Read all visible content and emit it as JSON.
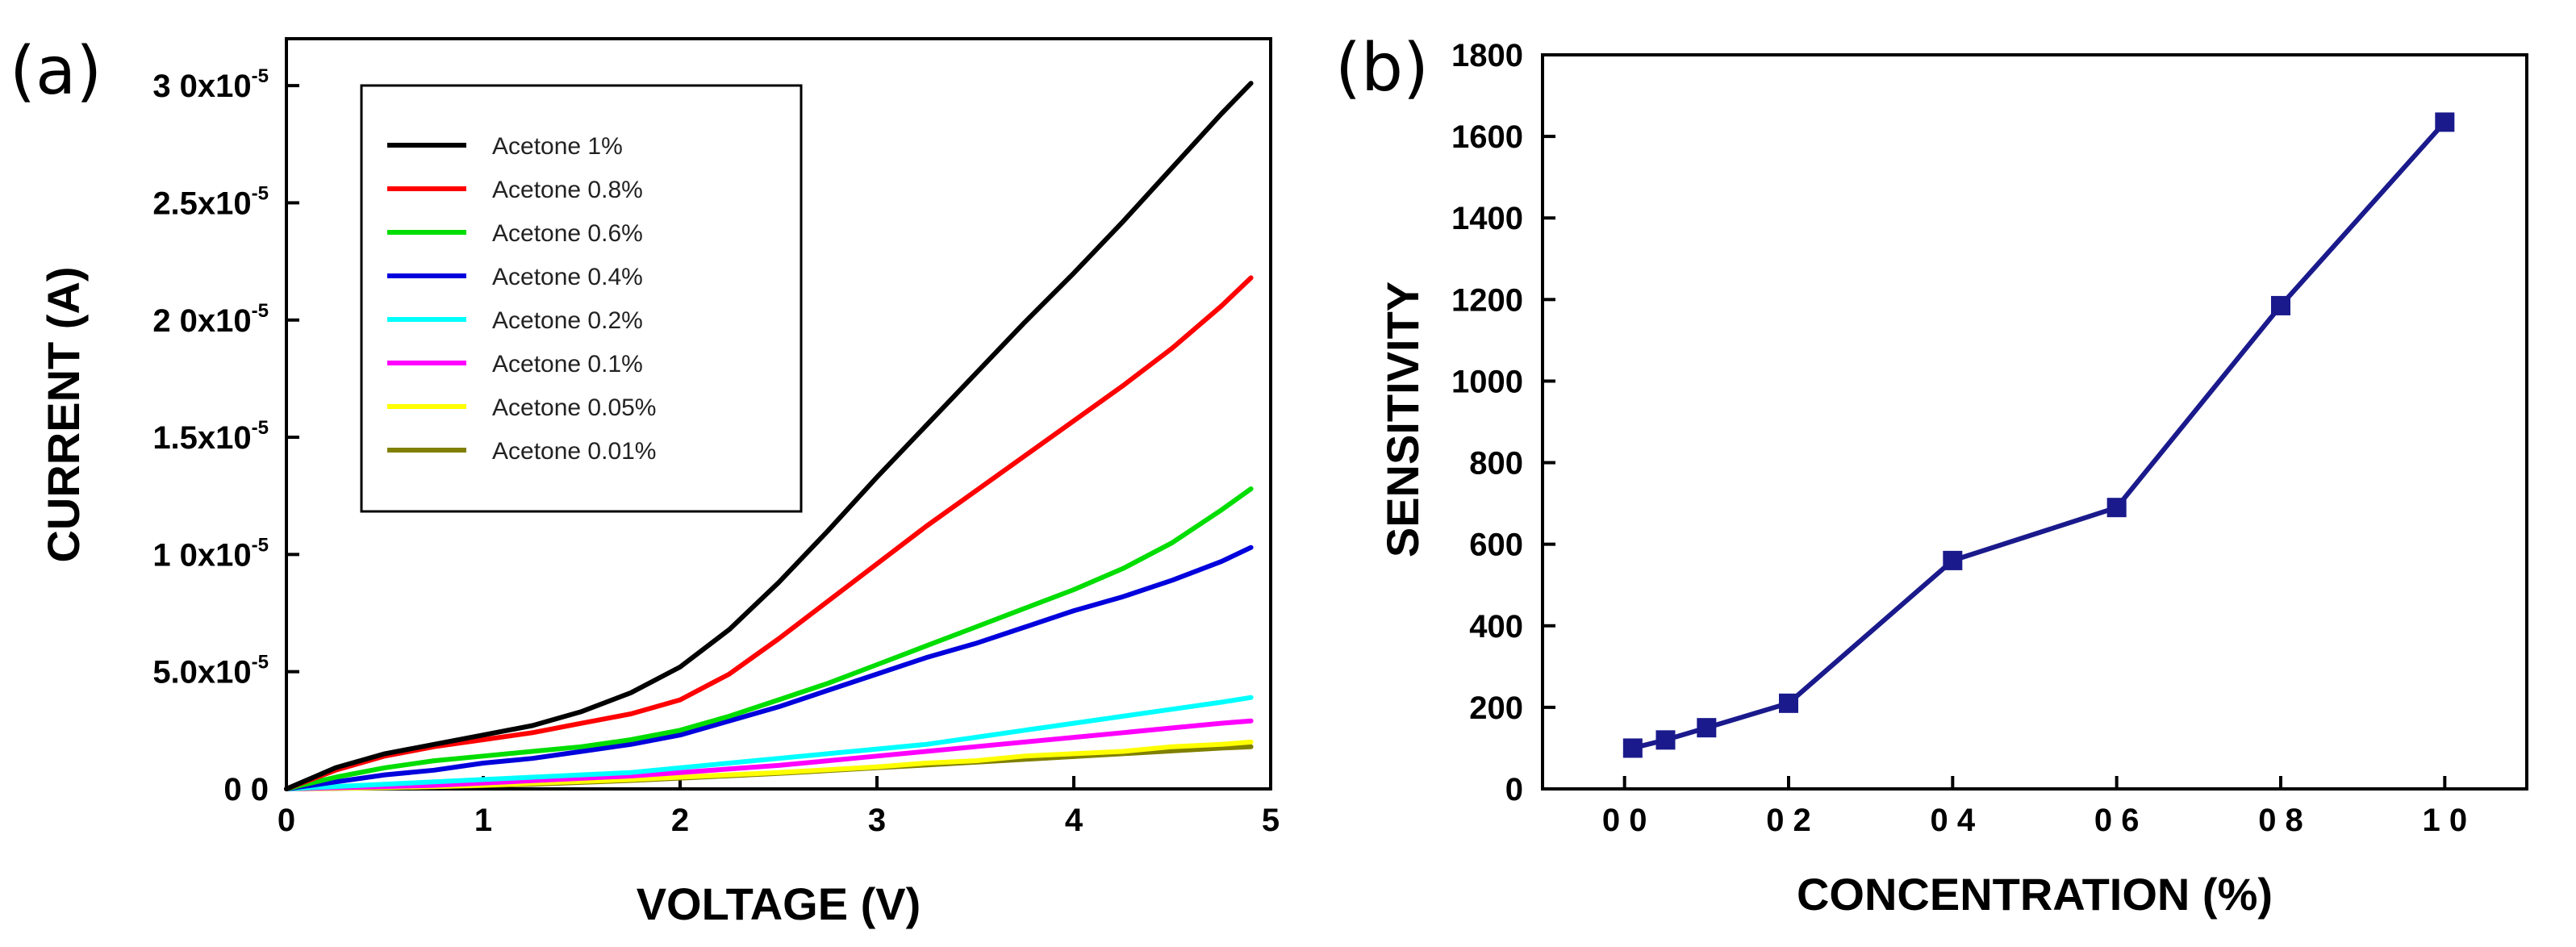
{
  "colors": {
    "acetone_1": "#000000",
    "acetone_0_8": "#ff0000",
    "acetone_0_6": "#00dd00",
    "acetone_0_4": "#0000dd",
    "acetone_0_2": "#00ffff",
    "acetone_0_1": "#ff00ff",
    "acetone_0_05": "#ffff00",
    "acetone_0_01": "#808000",
    "sensitivity_line": "#1a1a8c"
  },
  "chart_data": [
    {
      "panel_label": "(a)",
      "type": "line",
      "title": "",
      "xlabel": "VOLTAGE (V)",
      "ylabel": "CURRENT (A)",
      "xlim": [
        0,
        5
      ],
      "ylim": [
        0,
        3.2e-05
      ],
      "grid": false,
      "legend_position": "top-left",
      "x_ticks": [
        0,
        1,
        2,
        3,
        4,
        5
      ],
      "x_tick_labels": [
        "0",
        "1",
        "2",
        "3",
        "4",
        "5"
      ],
      "y_ticks": [
        0,
        5e-06,
        1e-05,
        1.5e-05,
        2e-05,
        2.5e-05,
        3e-05
      ],
      "y_tick_labels": [
        "0 0",
        "5.0x10",
        "1 0x10",
        "1.5x10",
        "2 0x10",
        "2.5x10",
        "3 0x10"
      ],
      "y_tick_exponent": "-5",
      "x": [
        0,
        0.25,
        0.5,
        0.75,
        1,
        1.25,
        1.5,
        1.75,
        2,
        2.25,
        2.5,
        2.75,
        3,
        3.25,
        3.5,
        3.75,
        4,
        4.25,
        4.5,
        4.75,
        4.9
      ],
      "series": [
        {
          "name": "Acetone 1%",
          "color_key": "acetone_1",
          "values": [
            0,
            9e-07,
            1.5e-06,
            1.9e-06,
            2.3e-06,
            2.7e-06,
            3.3e-06,
            4.1e-06,
            5.2e-06,
            6.8e-06,
            8.8e-06,
            1.1e-05,
            1.33e-05,
            1.55e-05,
            1.77e-05,
            1.99e-05,
            2.2e-05,
            2.42e-05,
            2.65e-05,
            2.88e-05,
            3.01e-05
          ]
        },
        {
          "name": "Acetone 0.8%",
          "color_key": "acetone_0_8",
          "values": [
            0,
            8e-07,
            1.4e-06,
            1.8e-06,
            2.1e-06,
            2.4e-06,
            2.8e-06,
            3.2e-06,
            3.8e-06,
            4.9e-06,
            6.4e-06,
            8e-06,
            9.6e-06,
            1.12e-05,
            1.27e-05,
            1.42e-05,
            1.57e-05,
            1.72e-05,
            1.88e-05,
            2.06e-05,
            2.18e-05
          ]
        },
        {
          "name": "Acetone 0.6%",
          "color_key": "acetone_0_6",
          "values": [
            0,
            5e-07,
            9e-07,
            1.2e-06,
            1.4e-06,
            1.6e-06,
            1.8e-06,
            2.1e-06,
            2.5e-06,
            3.1e-06,
            3.8e-06,
            4.5e-06,
            5.3e-06,
            6.1e-06,
            6.9e-06,
            7.7e-06,
            8.5e-06,
            9.4e-06,
            1.05e-05,
            1.19e-05,
            1.28e-05
          ]
        },
        {
          "name": "Acetone 0.4%",
          "color_key": "acetone_0_4",
          "values": [
            0,
            3e-07,
            6e-07,
            8e-07,
            1.1e-06,
            1.3e-06,
            1.6e-06,
            1.9e-06,
            2.3e-06,
            2.9e-06,
            3.5e-06,
            4.2e-06,
            4.9e-06,
            5.6e-06,
            6.2e-06,
            6.9e-06,
            7.6e-06,
            8.2e-06,
            8.9e-06,
            9.7e-06,
            1.03e-05
          ]
        },
        {
          "name": "Acetone 0.2%",
          "color_key": "acetone_0_2",
          "values": [
            0,
            1e-07,
            2e-07,
            3e-07,
            4e-07,
            5e-07,
            6e-07,
            7e-07,
            9e-07,
            1.1e-06,
            1.3e-06,
            1.5e-06,
            1.7e-06,
            1.9e-06,
            2.2e-06,
            2.5e-06,
            2.8e-06,
            3.1e-06,
            3.4e-06,
            3.7e-06,
            3.9e-06
          ]
        },
        {
          "name": "Acetone 0.1%",
          "color_key": "acetone_0_1",
          "values": [
            0,
            5e-08,
            1e-07,
            1.5e-07,
            2.5e-07,
            3.5e-07,
            4.5e-07,
            5.5e-07,
            7e-07,
            8.5e-07,
            1e-06,
            1.2e-06,
            1.4e-06,
            1.6e-06,
            1.8e-06,
            2e-06,
            2.2e-06,
            2.4e-06,
            2.6e-06,
            2.8e-06,
            2.9e-06
          ]
        },
        {
          "name": "Acetone 0.05%",
          "color_key": "acetone_0_05",
          "values": [
            0,
            3e-08,
            6e-08,
            1e-07,
            1.6e-07,
            2.4e-07,
            3.2e-07,
            4e-07,
            5e-07,
            6e-07,
            7e-07,
            8.2e-07,
            9.4e-07,
            1.1e-06,
            1.2e-06,
            1.4e-06,
            1.5e-06,
            1.6e-06,
            1.8e-06,
            1.9e-06,
            2e-06
          ]
        },
        {
          "name": "Acetone 0.01%",
          "color_key": "acetone_0_01",
          "values": [
            0,
            2e-08,
            5e-08,
            9e-08,
            1.4e-07,
            2e-07,
            2.8e-07,
            3.6e-07,
            4.6e-07,
            5.6e-07,
            6.6e-07,
            7.8e-07,
            9e-07,
            1.02e-06,
            1.14e-06,
            1.26e-06,
            1.38e-06,
            1.5e-06,
            1.62e-06,
            1.74e-06,
            1.8e-06
          ]
        }
      ]
    },
    {
      "panel_label": "(b)",
      "type": "line",
      "title": "",
      "xlabel": "CONCENTRATION (%)",
      "ylabel": "SENSITIVITY",
      "xlim": [
        -0.1,
        1.1
      ],
      "ylim": [
        0,
        1800
      ],
      "grid": false,
      "x_ticks": [
        0,
        0.2,
        0.4,
        0.6,
        0.8,
        1.0
      ],
      "x_tick_labels": [
        "0 0",
        "0 2",
        "0 4",
        "0 6",
        "0 8",
        "1 0"
      ],
      "y_ticks": [
        0,
        200,
        400,
        600,
        800,
        1000,
        1200,
        1400,
        1600,
        1800
      ],
      "y_tick_labels": [
        "0",
        "200",
        "400",
        "600",
        "800",
        "1000",
        "1200",
        "1400",
        "1600",
        "1800"
      ],
      "marker": "square",
      "color_key": "sensitivity_line",
      "x": [
        0.01,
        0.05,
        0.1,
        0.2,
        0.4,
        0.6,
        0.8,
        1.0
      ],
      "values": [
        100,
        120,
        150,
        210,
        560,
        690,
        1185,
        1635
      ]
    }
  ]
}
